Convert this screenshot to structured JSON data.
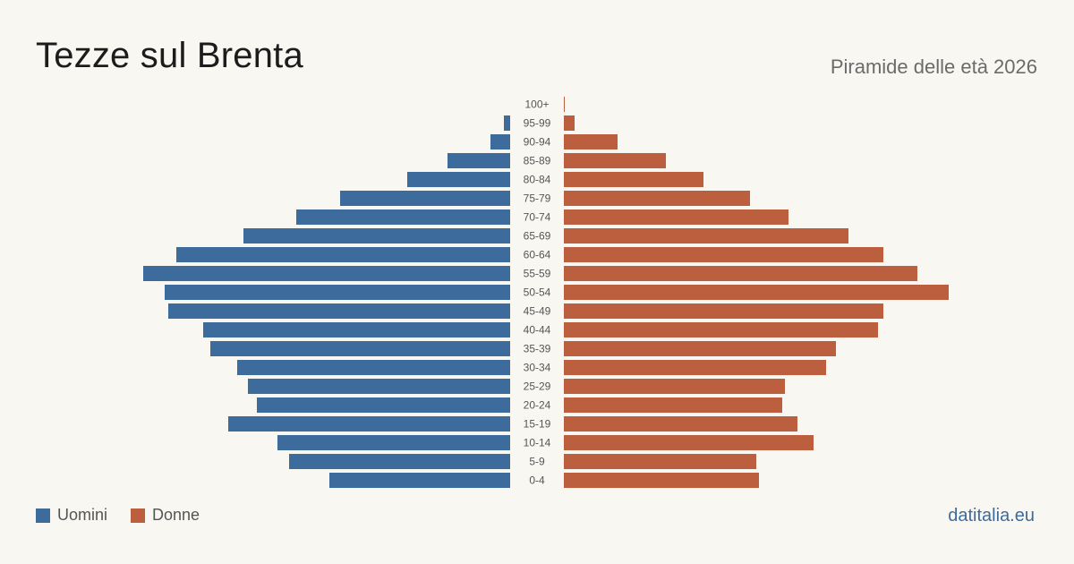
{
  "header": {
    "title": "Tezze sul Brenta",
    "subtitle": "Piramide delle età 2026"
  },
  "legend": {
    "men_label": "Uomini",
    "women_label": "Donne"
  },
  "colors": {
    "men": "#3d6b9c",
    "women": "#bb5f3f",
    "brand": "#3d6b9c"
  },
  "brand": "datitalia.eu",
  "chart_data": {
    "type": "bar",
    "orientation": "horizontal-pyramid",
    "categories": [
      "100+",
      "95-99",
      "90-94",
      "85-89",
      "80-84",
      "75-79",
      "70-74",
      "65-69",
      "60-64",
      "55-59",
      "50-54",
      "45-49",
      "40-44",
      "35-39",
      "30-34",
      "25-29",
      "20-24",
      "15-19",
      "10-14",
      "5-9",
      "0-4"
    ],
    "series": [
      {
        "name": "Uomini",
        "values": [
          0,
          7,
          22,
          70,
          115,
          190,
          239,
          298,
          373,
          410,
          386,
          382,
          343,
          335,
          305,
          293,
          283,
          315,
          260,
          247,
          202
        ]
      },
      {
        "name": "Donne",
        "values": [
          1,
          12,
          60,
          114,
          156,
          208,
          251,
          318,
          357,
          395,
          430,
          357,
          351,
          304,
          293,
          247,
          244,
          261,
          279,
          215,
          218
        ]
      }
    ],
    "title": "",
    "xlabel": "",
    "ylabel": ""
  }
}
